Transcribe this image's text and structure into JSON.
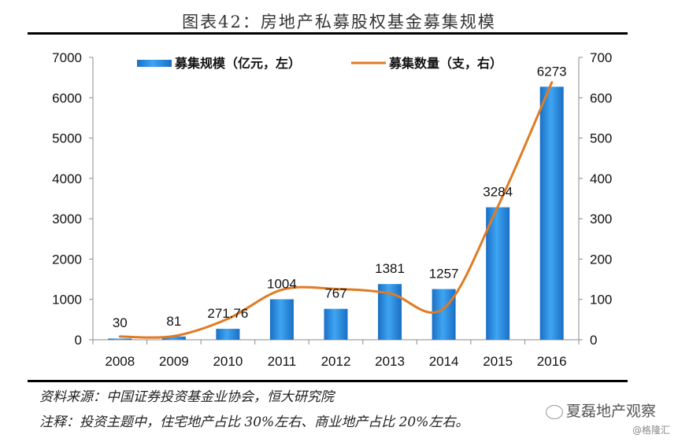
{
  "title": "图表42：房地产私募股权基金募集规模",
  "chart_data": {
    "type": "bar",
    "title": "图表42：房地产私募股权基金募集规模",
    "categories": [
      "2008",
      "2009",
      "2010",
      "2011",
      "2012",
      "2013",
      "2014",
      "2015",
      "2016"
    ],
    "series": [
      {
        "name": "募集规模（亿元，左）",
        "type": "bar",
        "axis": "left",
        "color": "#2E8FE0",
        "values": [
          30,
          81,
          271.76,
          1004,
          767,
          1381,
          1257,
          3284,
          6273
        ],
        "labels": [
          "30",
          "81",
          "271.76",
          "1004",
          "767",
          "1381",
          "1257",
          "3284",
          "6273"
        ]
      },
      {
        "name": "募集数量（支，右）",
        "type": "line",
        "axis": "right",
        "color": "#E07B22",
        "smooth": true,
        "values": [
          8,
          9,
          52,
          124,
          126,
          115,
          78,
          330,
          638
        ]
      }
    ],
    "y_left": {
      "range": [
        0,
        7000
      ],
      "ticks": [
        "0",
        "1000",
        "2000",
        "3000",
        "4000",
        "5000",
        "6000",
        "7000"
      ]
    },
    "y_right": {
      "range": [
        0,
        700
      ],
      "ticks": [
        "0",
        "100",
        "200",
        "300",
        "400",
        "500",
        "600",
        "700"
      ]
    },
    "xlabel": "",
    "ylabel": "",
    "grid": false,
    "legend": "top"
  },
  "footer": {
    "source": "资料来源：中国证券投资基金业协会，恒大研究院",
    "note": "注释：投资主题中，住宅地产占比 30%左右、商业地产占比 20%左右。"
  },
  "watermark": {
    "name": "夏磊地产观察",
    "sub": "@格隆汇"
  }
}
